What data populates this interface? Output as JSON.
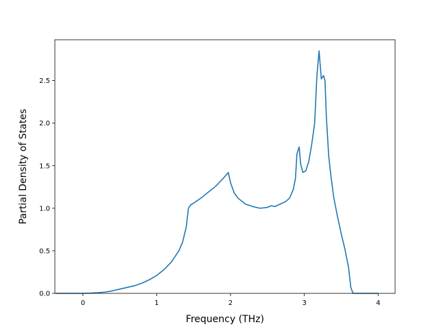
{
  "chart_data": {
    "type": "line",
    "title": "",
    "xlabel": "Frequency (THz)",
    "ylabel": "Partial Density of States",
    "xlim": [
      -0.38,
      4.23
    ],
    "ylim": [
      0,
      2.98
    ],
    "grid": false,
    "x_ticks": [
      0,
      1,
      2,
      3,
      4
    ],
    "x_tick_labels": [
      "0",
      "1",
      "2",
      "3",
      "4"
    ],
    "y_ticks": [
      0.0,
      0.5,
      1.0,
      1.5,
      2.0,
      2.5
    ],
    "y_tick_labels": [
      "0.0",
      "0.5",
      "1.0",
      "1.5",
      "2.0",
      "2.5"
    ],
    "series": [
      {
        "color": "#1f77b4",
        "points": [
          [
            -0.37,
            0.0
          ],
          [
            0.0,
            0.0
          ],
          [
            0.1,
            0.003
          ],
          [
            0.2,
            0.008
          ],
          [
            0.3,
            0.015
          ],
          [
            0.4,
            0.03
          ],
          [
            0.5,
            0.05
          ],
          [
            0.6,
            0.07
          ],
          [
            0.7,
            0.09
          ],
          [
            0.8,
            0.12
          ],
          [
            0.9,
            0.16
          ],
          [
            1.0,
            0.21
          ],
          [
            1.1,
            0.28
          ],
          [
            1.2,
            0.37
          ],
          [
            1.3,
            0.5
          ],
          [
            1.35,
            0.6
          ],
          [
            1.4,
            0.78
          ],
          [
            1.43,
            1.0
          ],
          [
            1.46,
            1.04
          ],
          [
            1.5,
            1.06
          ],
          [
            1.6,
            1.12
          ],
          [
            1.7,
            1.19
          ],
          [
            1.8,
            1.26
          ],
          [
            1.9,
            1.35
          ],
          [
            1.97,
            1.42
          ],
          [
            2.0,
            1.3
          ],
          [
            2.05,
            1.18
          ],
          [
            2.1,
            1.12
          ],
          [
            2.2,
            1.05
          ],
          [
            2.3,
            1.02
          ],
          [
            2.4,
            1.0
          ],
          [
            2.5,
            1.01
          ],
          [
            2.55,
            1.03
          ],
          [
            2.6,
            1.02
          ],
          [
            2.65,
            1.04
          ],
          [
            2.7,
            1.06
          ],
          [
            2.75,
            1.08
          ],
          [
            2.8,
            1.12
          ],
          [
            2.85,
            1.22
          ],
          [
            2.88,
            1.35
          ],
          [
            2.9,
            1.64
          ],
          [
            2.93,
            1.72
          ],
          [
            2.95,
            1.52
          ],
          [
            2.98,
            1.42
          ],
          [
            3.02,
            1.44
          ],
          [
            3.06,
            1.55
          ],
          [
            3.1,
            1.75
          ],
          [
            3.14,
            2.0
          ],
          [
            3.17,
            2.55
          ],
          [
            3.2,
            2.85
          ],
          [
            3.23,
            2.52
          ],
          [
            3.26,
            2.56
          ],
          [
            3.28,
            2.5
          ],
          [
            3.3,
            2.05
          ],
          [
            3.33,
            1.62
          ],
          [
            3.36,
            1.38
          ],
          [
            3.4,
            1.12
          ],
          [
            3.45,
            0.9
          ],
          [
            3.5,
            0.7
          ],
          [
            3.55,
            0.52
          ],
          [
            3.6,
            0.3
          ],
          [
            3.63,
            0.07
          ],
          [
            3.66,
            0.0
          ],
          [
            4.0,
            0.0
          ]
        ]
      }
    ]
  }
}
